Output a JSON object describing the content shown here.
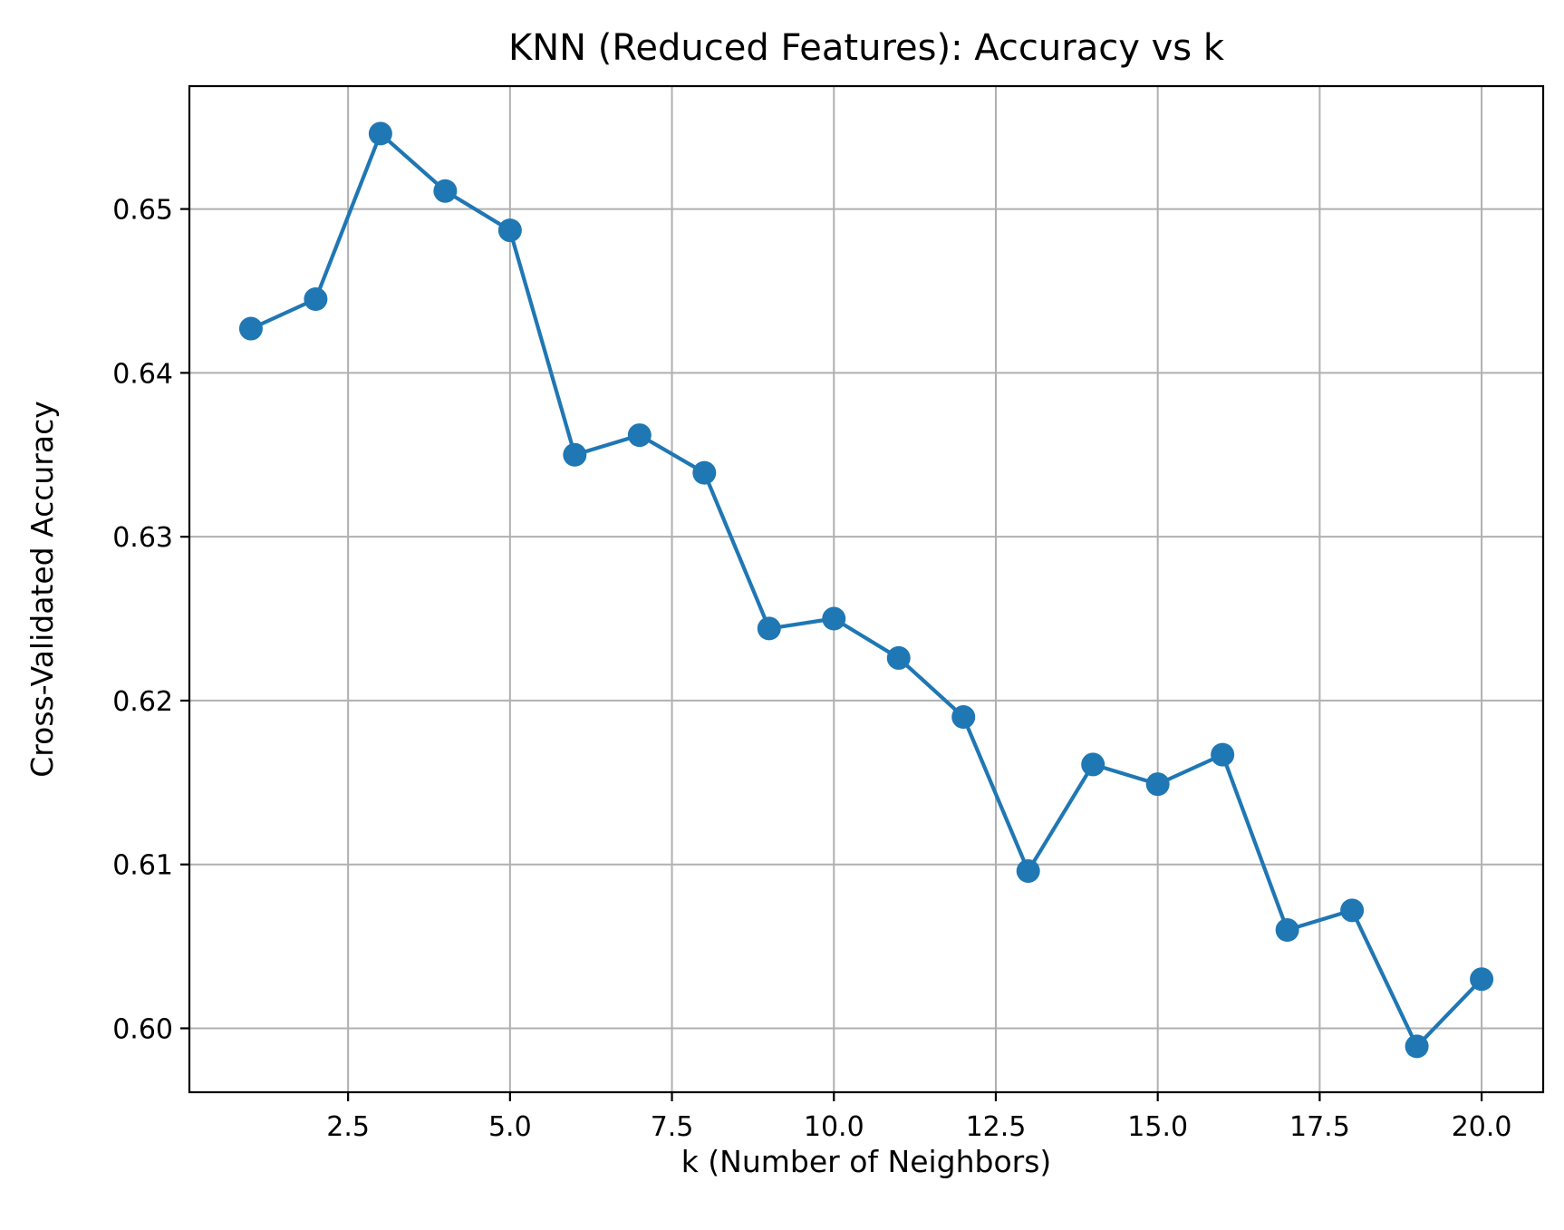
{
  "chart_data": {
    "type": "line",
    "title": "KNN (Reduced Features): Accuracy vs k",
    "xlabel": "k (Number of Neighbors)",
    "ylabel": "Cross-Validated Accuracy",
    "xlim": [
      0.05,
      20.95
    ],
    "ylim": [
      0.5961,
      0.6575
    ],
    "xticks": [
      2.5,
      5.0,
      7.5,
      10.0,
      12.5,
      15.0,
      17.5,
      20.0
    ],
    "xtick_labels": [
      "2.5",
      "5.0",
      "7.5",
      "10.0",
      "12.5",
      "15.0",
      "17.5",
      "20.0"
    ],
    "yticks": [
      0.6,
      0.61,
      0.62,
      0.63,
      0.64,
      0.65
    ],
    "ytick_labels": [
      "0.60",
      "0.61",
      "0.62",
      "0.63",
      "0.64",
      "0.65"
    ],
    "grid": true,
    "marker": "circle",
    "color": "#1f77b4",
    "series": [
      {
        "x": [
          1,
          2,
          3,
          4,
          5,
          6,
          7,
          8,
          9,
          10,
          11,
          12,
          13,
          14,
          15,
          16,
          17,
          18,
          19,
          20
        ],
        "values": [
          0.6427,
          0.6445,
          0.6546,
          0.6511,
          0.6487,
          0.635,
          0.6362,
          0.6339,
          0.6244,
          0.625,
          0.6226,
          0.619,
          0.6096,
          0.6161,
          0.6149,
          0.6167,
          0.606,
          0.6072,
          0.5989,
          0.603
        ]
      }
    ]
  }
}
